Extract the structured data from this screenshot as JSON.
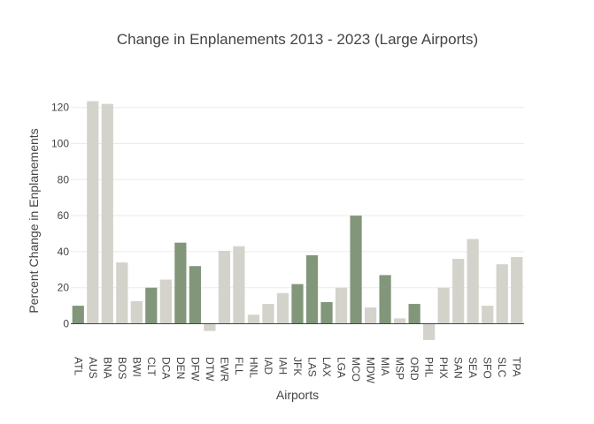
{
  "chart_data": {
    "type": "bar",
    "title": "Change in Enplanements 2013 - 2023 (Large Airports)",
    "xlabel": "Airports",
    "ylabel": "Percent Change in Enplanements",
    "ylim": [
      -13,
      123
    ],
    "yticks": [
      0,
      20,
      40,
      60,
      80,
      100,
      120
    ],
    "grid": true,
    "legend": "none",
    "categories": [
      "ATL",
      "AUS",
      "BNA",
      "BOS",
      "BWI",
      "CLT",
      "DCA",
      "DEN",
      "DFW",
      "DTW",
      "EWR",
      "FLL",
      "HNL",
      "IAD",
      "IAH",
      "JFK",
      "LAS",
      "LAX",
      "LGA",
      "MCO",
      "MDW",
      "MIA",
      "MSP",
      "ORD",
      "PHL",
      "PHX",
      "SAN",
      "SEA",
      "SFO",
      "SLC",
      "TPA"
    ],
    "values": [
      10,
      123.5,
      122,
      34,
      12.5,
      20,
      24.5,
      45,
      32,
      -4,
      40.5,
      43,
      5,
      11,
      17,
      22,
      38,
      12,
      20,
      60,
      9,
      27,
      3,
      11,
      -9,
      20,
      36,
      47,
      10,
      33,
      37
    ],
    "highlighted": [
      "ATL",
      "CLT",
      "DEN",
      "DFW",
      "JFK",
      "LAS",
      "LAX",
      "MCO",
      "MIA",
      "ORD"
    ],
    "colors": {
      "highlight": "#82967a",
      "default": "#d3d3cb"
    }
  }
}
